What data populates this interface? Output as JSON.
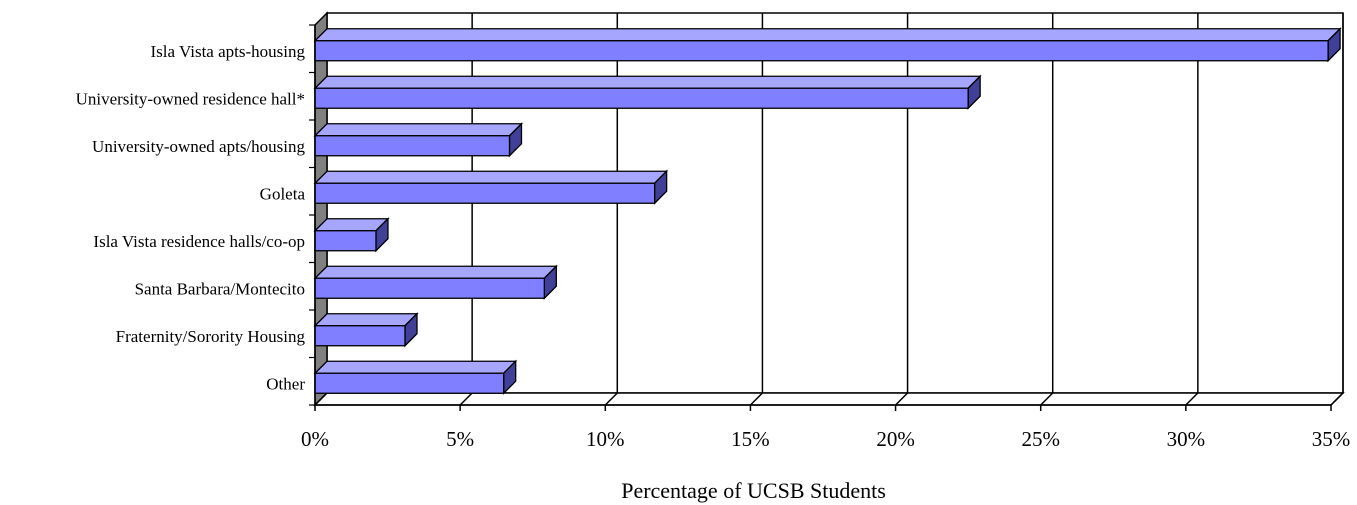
{
  "chart_data": {
    "type": "bar",
    "orientation": "horizontal",
    "style": "3d",
    "categories": [
      "Isla Vista apts-housing",
      "University-owned residence hall*",
      "University-owned apts/housing",
      "Goleta",
      "Isla Vista residence halls/co-op",
      "Santa Barbara/Montecito",
      "Fraternity/Sorority Housing",
      "Other"
    ],
    "values": [
      34.9,
      22.5,
      6.7,
      11.7,
      2.1,
      7.9,
      3.1,
      6.5
    ],
    "unit": "%",
    "xlabel": "Percentage of UCSB Students",
    "ylabel": "",
    "xlim": [
      0,
      35
    ],
    "xticks": [
      "0%",
      "5%",
      "10%",
      "15%",
      "20%",
      "25%",
      "30%",
      "35%"
    ],
    "grid": "vertical",
    "colors": {
      "bar_face": "#7f7fff",
      "bar_top": "#a6a6ff",
      "bar_side": "#404099",
      "wall": "#808080",
      "outline": "#000000"
    }
  }
}
